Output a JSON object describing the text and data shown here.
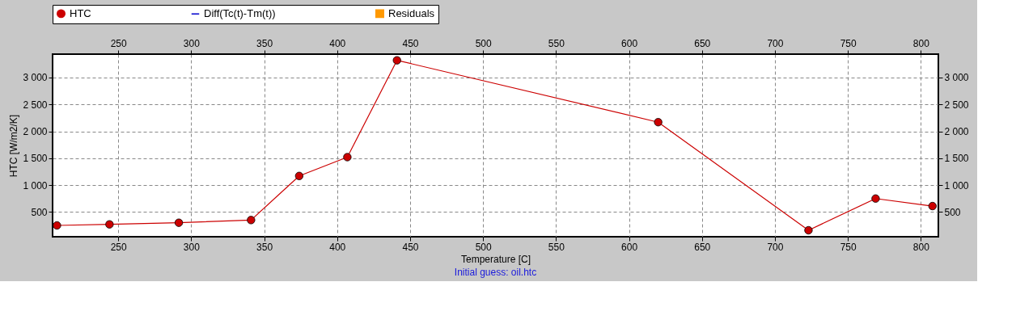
{
  "chart_data": {
    "type": "line",
    "xlabel": "Temperature [C]",
    "ylabel": "HTC [W/m2/K]",
    "annotations": [
      "Initial guess: oil.htc"
    ],
    "series": [
      {
        "name": "HTC",
        "color": "#cc0000",
        "marker": "circle",
        "x": [
          208,
          244,
          291.5,
          341,
          374,
          407,
          441,
          620,
          723,
          769,
          808
        ],
        "values": [
          250,
          270,
          300,
          350,
          1170,
          1520,
          3320,
          2170,
          160,
          750,
          610
        ]
      },
      {
        "name": "Diff(Tc(t)-Tm(t))",
        "color": "#0000cc",
        "marker": "none"
      },
      {
        "name": "Residuals",
        "color": "#ff9900",
        "marker": "square"
      }
    ],
    "xlim": [
      205,
      812
    ],
    "xticks": [
      250,
      300,
      350,
      400,
      450,
      500,
      550,
      600,
      650,
      700,
      750,
      800
    ],
    "x2lim": [
      205,
      812
    ],
    "x2ticks": [
      250,
      300,
      350,
      400,
      450,
      500,
      550,
      600,
      650,
      700,
      750,
      800
    ],
    "ylim": [
      40,
      3435
    ],
    "yticks": [
      500,
      {
        "value": 1000,
        "label": "1 000"
      },
      {
        "value": 1500,
        "label": "1 500"
      },
      {
        "value": 2000,
        "label": "2 000"
      },
      {
        "value": 2500,
        "label": "2 500"
      },
      {
        "value": 3000,
        "label": "3 000"
      }
    ],
    "y2lim": [
      40,
      3435
    ],
    "y2ticks": [
      500,
      {
        "value": 1000,
        "label": "1 000"
      },
      {
        "value": 1500,
        "label": "1 500"
      },
      {
        "value": 2000,
        "label": "2 000"
      },
      {
        "value": 2500,
        "label": "2 500"
      },
      {
        "value": 3000,
        "label": "3 000"
      }
    ],
    "grid": true,
    "legend": "top",
    "line_style": "solid"
  }
}
